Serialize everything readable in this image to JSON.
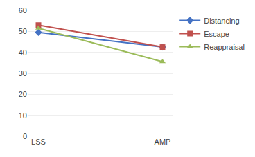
{
  "chart_data": {
    "type": "line",
    "categories": [
      "LSS",
      "AMP"
    ],
    "series": [
      {
        "name": "Distancing",
        "color": "#4472C4",
        "marker": "diamond",
        "values": [
          49.5,
          42.5
        ]
      },
      {
        "name": "Escape",
        "color": "#C0504D",
        "marker": "square",
        "values": [
          53.0,
          42.5
        ]
      },
      {
        "name": "Reappraisal",
        "color": "#9BBB59",
        "marker": "triangle-up",
        "values": [
          51.5,
          35.5
        ]
      }
    ],
    "ylim": [
      0,
      60
    ],
    "yticks": [
      0,
      10,
      20,
      30,
      40,
      50,
      60
    ],
    "grid": true,
    "legend": "right"
  }
}
